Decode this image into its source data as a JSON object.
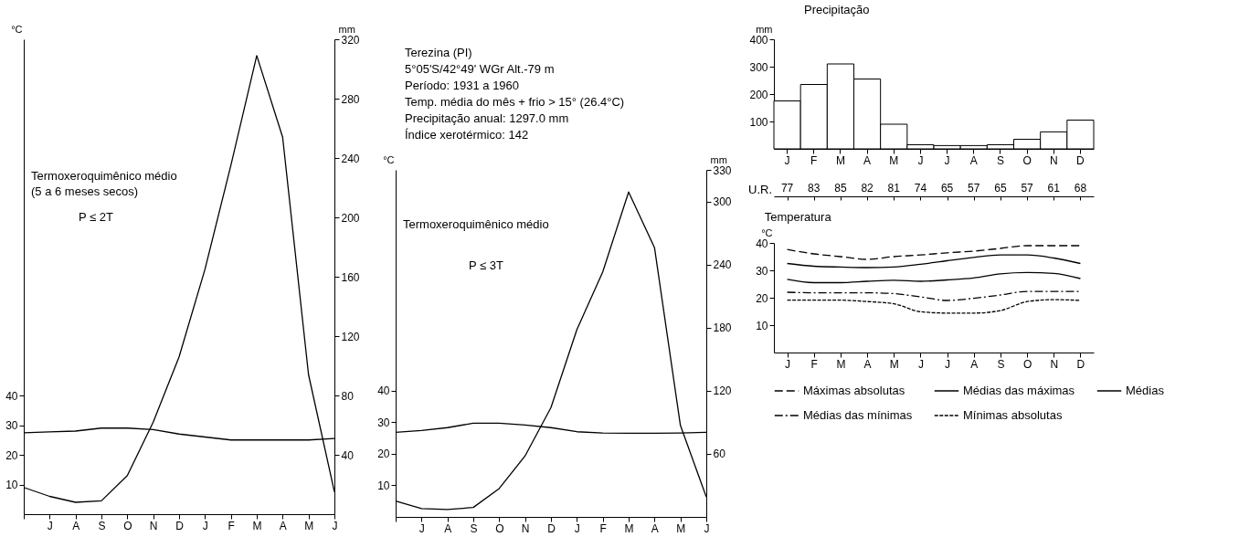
{
  "chart_data": [
    {
      "type": "line",
      "ylabel": "°C",
      "y2label": "mm",
      "categories": [
        null,
        "J",
        "A",
        "S",
        "O",
        "N",
        "D",
        "J",
        "F",
        "M",
        "A",
        "M",
        "J"
      ],
      "series": [
        {
          "type": "line",
          "color": "#000000",
          "values": [
            27.4,
            27.7,
            28,
            29,
            29,
            28.5,
            27,
            26,
            25,
            25,
            25,
            25,
            25.5
          ]
        },
        {
          "type": "line",
          "axis": "y2",
          "color": "#000000",
          "values": [
            18,
            12,
            8,
            9,
            26,
            62,
            106,
            165,
            235,
            309,
            254,
            94,
            15
          ]
        }
      ],
      "ylim": [
        0,
        160
      ],
      "yticks": [
        10,
        20,
        30,
        40
      ],
      "y2lim": [
        0,
        320
      ],
      "y2ticks": [
        40,
        80,
        120,
        160,
        200,
        240,
        280,
        320
      ],
      "annotations": [
        "Termoxeroquimênico médio",
        "(5 a 6 meses secos)",
        "P ≤ 2T"
      ],
      "grid": false
    },
    {
      "type": "line",
      "title": "Terezina (PI)",
      "subtitle": [
        "5°05'S/42°49' WGr   Alt.-79 m",
        "Período: 1931 a 1960",
        "Temp. média do mês + frio > 15° (26.4°C)",
        "Precipitação anual: 1297.0 mm",
        "Índice xerotérmico: 142"
      ],
      "ylabel": "°C",
      "y2label": "mm",
      "categories": [
        null,
        "J",
        "A",
        "S",
        "O",
        "N",
        "D",
        "J",
        "F",
        "M",
        "A",
        "M",
        "J"
      ],
      "series": [
        {
          "type": "line",
          "color": "#000000",
          "values": [
            26.8,
            27.4,
            28.3,
            29.7,
            29.7,
            29.1,
            28.3,
            27,
            26.6,
            26.5,
            26.5,
            26.6,
            26.8
          ]
        },
        {
          "type": "line",
          "axis": "y2",
          "color": "#000000",
          "values": [
            15,
            8,
            7,
            9,
            27,
            58,
            104,
            178,
            233,
            309,
            256,
            87,
            19
          ]
        }
      ],
      "ylim": [
        0,
        110
      ],
      "yticks": [
        10,
        20,
        30,
        40
      ],
      "y2lim": [
        0,
        330
      ],
      "y2ticks": [
        60,
        120,
        180,
        240,
        300,
        330
      ],
      "annotations": [
        "Termoxeroquimênico médio",
        "P ≤ 3T"
      ],
      "grid": false
    },
    {
      "type": "bar",
      "title": "Precipitação",
      "ylabel": "mm",
      "categories": [
        "J",
        "F",
        "M",
        "A",
        "M",
        "J",
        "J",
        "A",
        "S",
        "O",
        "N",
        "D"
      ],
      "values": [
        175,
        235,
        310,
        255,
        90,
        15,
        12,
        12,
        15,
        35,
        62,
        105
      ],
      "color": "#ffffff",
      "ylim": [
        0,
        400
      ],
      "yticks": [
        100,
        200,
        300,
        400
      ],
      "grid": false
    },
    {
      "type": "other",
      "ylabel": "U.R.",
      "categories": [
        null,
        null,
        null,
        null,
        null,
        null,
        null,
        null,
        null,
        null,
        null,
        null
      ],
      "values": [
        77,
        83,
        85,
        82,
        81,
        74,
        65,
        57,
        65,
        57,
        61,
        68
      ],
      "data_labels": true
    },
    {
      "type": "line",
      "title": "Temperatura",
      "ylabel": "°C",
      "categories": [
        "J",
        "F",
        "M",
        "A",
        "M",
        "J",
        "J",
        "A",
        "S",
        "O",
        "N",
        "D"
      ],
      "series": [
        {
          "name": "Máximas absolutas",
          "color": "#000000",
          "line_style": "dashed",
          "values": [
            37.6,
            36,
            35,
            34,
            35,
            35.6,
            36.4,
            37,
            38,
            39,
            39,
            39
          ]
        },
        {
          "name": "Médias das máximas",
          "color": "#000000",
          "line_style": "solid",
          "values": [
            32.5,
            31.5,
            31.2,
            31,
            31.2,
            32.2,
            33.5,
            34.7,
            35.6,
            35.6,
            34.5,
            32.5
          ]
        },
        {
          "name": "Médias",
          "color": "#000000",
          "line_style": "solid",
          "values": [
            26.7,
            25.5,
            25.5,
            26,
            26.4,
            26,
            26.5,
            27.2,
            28.7,
            29.2,
            28.9,
            27
          ]
        },
        {
          "name": "Médias das mínimas",
          "color": "#000000",
          "line_style": "dashdot",
          "values": [
            22,
            21.8,
            21.8,
            21.8,
            21.5,
            20.3,
            19,
            19.8,
            21,
            22.3,
            22.3,
            22.3
          ]
        },
        {
          "name": "Mínimas absolutas",
          "color": "#000000",
          "line_style": "dotted",
          "values": [
            19.1,
            19.1,
            19.1,
            18.6,
            17.8,
            14.9,
            14.4,
            14.4,
            15.3,
            18.6,
            19.3,
            19
          ]
        }
      ],
      "ylim": [
        0,
        40
      ],
      "yticks": [
        10,
        20,
        30,
        40
      ],
      "grid": false,
      "legend": "bottom"
    }
  ]
}
